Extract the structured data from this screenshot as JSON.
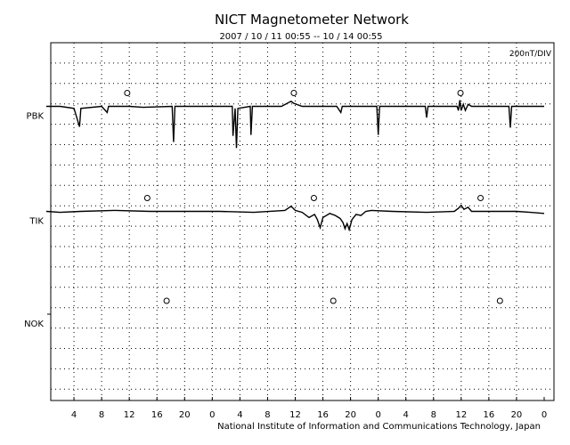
{
  "chart_data": {
    "type": "line",
    "title": "NICT Magnetometer Network",
    "subtitle": "2007 / 10 / 11   00:55 -- 10 / 14   00:55",
    "scale_label": "200nT/DIV",
    "credit": "National Institute of Information and Communications Technology, Japan",
    "x_tick_labels": [
      "4",
      "8",
      "12",
      "16",
      "20",
      "0",
      "4",
      "8",
      "12",
      "16",
      "20",
      "0",
      "4",
      "8",
      "12",
      "16",
      "20",
      "0"
    ],
    "x_range_hours": [
      0,
      72
    ],
    "grid": true,
    "stations": [
      {
        "name": "PBK",
        "noon_markers_hours": [
          11.7,
          35.8,
          59.9
        ],
        "trace": [
          [
            0,
            0
          ],
          [
            2,
            0
          ],
          [
            4,
            -0.1
          ],
          [
            4.8,
            -1.0
          ],
          [
            5.0,
            -0.1
          ],
          [
            8,
            0
          ],
          [
            8.8,
            -0.3
          ],
          [
            9.0,
            0
          ],
          [
            12,
            0
          ],
          [
            14,
            -0.05
          ],
          [
            18.2,
            0
          ],
          [
            18.4,
            -1.75
          ],
          [
            18.6,
            0
          ],
          [
            24,
            0
          ],
          [
            26.9,
            0
          ],
          [
            27.0,
            -1.45
          ],
          [
            27.3,
            -0.1
          ],
          [
            27.5,
            -2.05
          ],
          [
            27.7,
            -0.1
          ],
          [
            29.5,
            0
          ],
          [
            29.6,
            -1.4
          ],
          [
            29.8,
            0
          ],
          [
            34,
            0
          ],
          [
            35.4,
            0.25
          ],
          [
            35.8,
            0.15
          ],
          [
            37,
            0
          ],
          [
            40,
            0
          ],
          [
            42,
            0
          ],
          [
            42.6,
            -0.3
          ],
          [
            42.8,
            0
          ],
          [
            47.8,
            0
          ],
          [
            48.0,
            -1.4
          ],
          [
            48.2,
            0
          ],
          [
            52,
            0
          ],
          [
            54.8,
            0
          ],
          [
            55.0,
            -0.55
          ],
          [
            55.2,
            0
          ],
          [
            59.4,
            0
          ],
          [
            59.6,
            -0.2
          ],
          [
            59.8,
            0.3
          ],
          [
            60.0,
            -0.2
          ],
          [
            60.3,
            0.1
          ],
          [
            60.6,
            -0.2
          ],
          [
            61.0,
            0.1
          ],
          [
            61.5,
            0
          ],
          [
            64,
            0
          ],
          [
            66.9,
            0
          ],
          [
            67.1,
            -1.05
          ],
          [
            67.3,
            0
          ],
          [
            72,
            0
          ]
        ]
      },
      {
        "name": "TIK",
        "noon_markers_hours": [
          14.6,
          38.7,
          62.8
        ],
        "trace": [
          [
            0,
            0
          ],
          [
            2,
            -0.05
          ],
          [
            5,
            0
          ],
          [
            10,
            0.05
          ],
          [
            15,
            0
          ],
          [
            20,
            0
          ],
          [
            25,
            0
          ],
          [
            30,
            -0.05
          ],
          [
            34.5,
            0.05
          ],
          [
            35.4,
            0.25
          ],
          [
            36,
            0.05
          ],
          [
            37,
            -0.05
          ],
          [
            38,
            -0.3
          ],
          [
            38.8,
            -0.15
          ],
          [
            39.2,
            -0.4
          ],
          [
            39.6,
            -0.8
          ],
          [
            40,
            -0.3
          ],
          [
            41,
            -0.1
          ],
          [
            41.8,
            -0.2
          ],
          [
            42.5,
            -0.35
          ],
          [
            42.9,
            -0.55
          ],
          [
            43.2,
            -0.85
          ],
          [
            43.5,
            -0.6
          ],
          [
            43.8,
            -0.9
          ],
          [
            44.2,
            -0.4
          ],
          [
            44.8,
            -0.15
          ],
          [
            45.5,
            -0.2
          ],
          [
            46.2,
            0
          ],
          [
            47,
            0.05
          ],
          [
            50,
            0
          ],
          [
            55,
            -0.05
          ],
          [
            59,
            0
          ],
          [
            59.6,
            0.15
          ],
          [
            60.0,
            0.3
          ],
          [
            60.4,
            0.1
          ],
          [
            61,
            0.2
          ],
          [
            61.5,
            0
          ],
          [
            65,
            0
          ],
          [
            68,
            0
          ],
          [
            70,
            -0.05
          ],
          [
            72,
            -0.1
          ]
        ]
      },
      {
        "name": "NOK",
        "noon_markers_hours": [
          17.4,
          41.5,
          65.6
        ],
        "trace": []
      }
    ]
  }
}
